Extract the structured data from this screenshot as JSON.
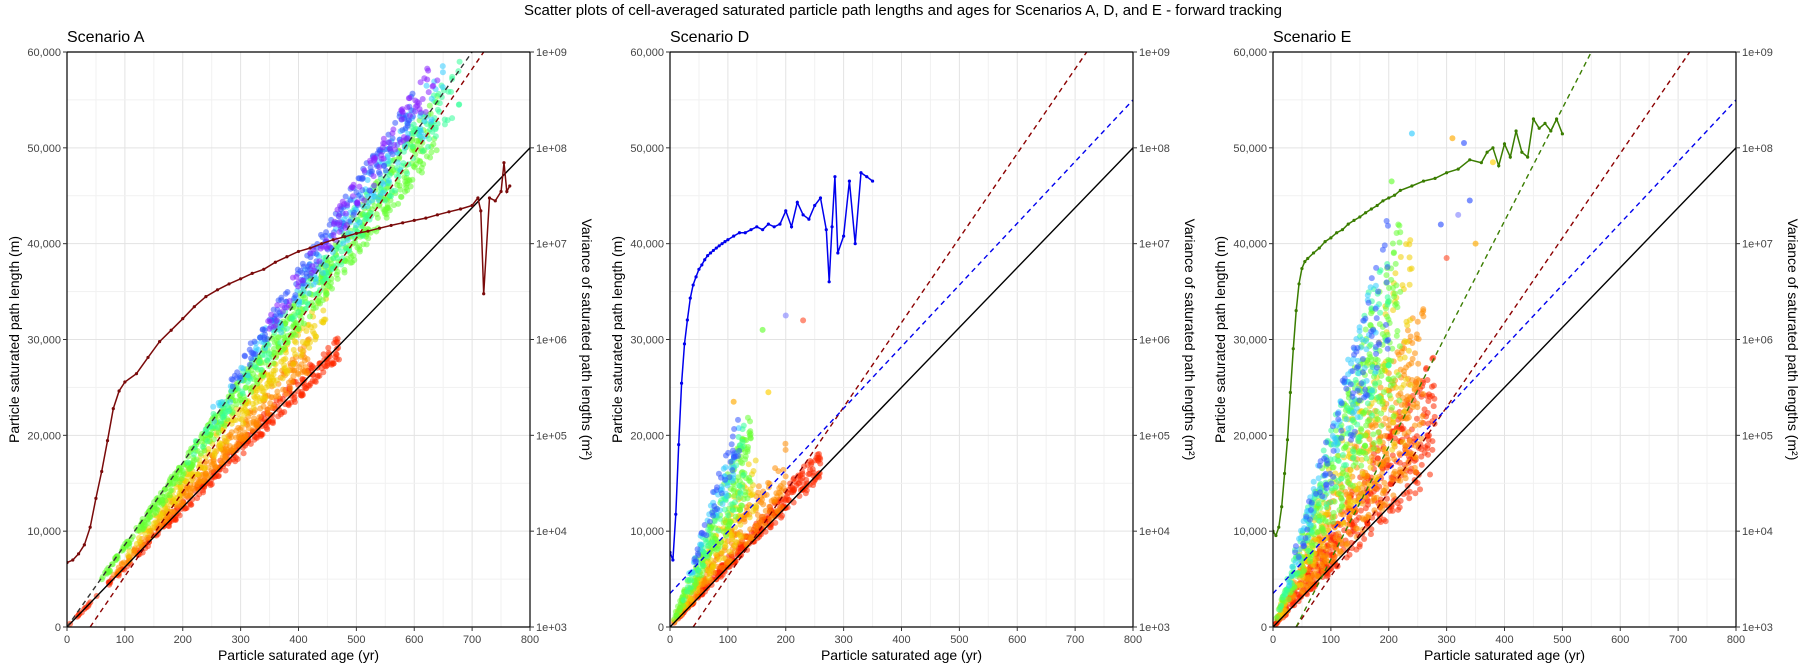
{
  "figure": {
    "title": "Scatter plots of cell-averaged saturated particle path lengths and ages for Scenarios A, D, and E - forward tracking"
  },
  "chart_data": [
    {
      "type": "scatter",
      "title": "Scenario A",
      "xlabel": "Particle saturated age (yr)",
      "ylabel": "Particle saturated path length (m)",
      "y2label": "Variance of saturated path lengths (m²)",
      "xlim": [
        0,
        800
      ],
      "ylim": [
        0,
        60000
      ],
      "y2lim": [
        1000,
        1000000000
      ],
      "y2scale": "log",
      "x_ticks": [
        "0",
        "100",
        "200",
        "300",
        "400",
        "500",
        "600",
        "700",
        "800"
      ],
      "y_ticks": [
        "0",
        "10,000",
        "20,000",
        "30,000",
        "40,000",
        "50,000",
        "60,000"
      ],
      "y2_ticks": [
        "1e+03",
        "1e+04",
        "1e+05",
        "1e+06",
        "1e+07",
        "1e+08",
        "1e+09"
      ],
      "grid": true,
      "reference_lines": [
        {
          "style": "solid",
          "color": "#000000",
          "x": [
            0,
            800
          ],
          "y": [
            0,
            50000
          ]
        },
        {
          "style": "dashed",
          "color": "#8b0000",
          "x": [
            40,
            720
          ],
          "y": [
            0,
            60000
          ]
        },
        {
          "style": "dashed",
          "color": "#333333",
          "x": [
            0,
            700
          ],
          "y": [
            0,
            60000
          ]
        }
      ],
      "scatter_clouds": [
        {
          "color": "#ff2a00",
          "x_range": [
            5,
            470
          ],
          "slope": 62.5,
          "spread": 0.05,
          "n": 320
        },
        {
          "color": "#ff8c00",
          "x_range": [
            80,
            420
          ],
          "slope": 68,
          "spread": 0.06,
          "n": 260
        },
        {
          "color": "#f0d000",
          "x_range": [
            100,
            450
          ],
          "slope": 74,
          "spread": 0.06,
          "n": 220
        },
        {
          "color": "#66ff33",
          "x_range": [
            60,
            640
          ],
          "slope": 82,
          "spread": 0.06,
          "n": 650
        },
        {
          "color": "#33ff99",
          "x_range": [
            200,
            680
          ],
          "slope": 84,
          "spread": 0.05,
          "n": 200
        },
        {
          "color": "#33ccff",
          "x_range": [
            250,
            650
          ],
          "slope": 87,
          "spread": 0.05,
          "n": 140
        },
        {
          "color": "#3355ff",
          "x_range": [
            280,
            600
          ],
          "slope": 90,
          "spread": 0.04,
          "n": 180
        },
        {
          "color": "#8822ff",
          "x_range": [
            340,
            640
          ],
          "slope": 90,
          "spread": 0.04,
          "n": 110
        }
      ],
      "variance_series": {
        "color": "#7a0a0a",
        "x": [
          0,
          10,
          20,
          30,
          40,
          50,
          60,
          70,
          80,
          90,
          100,
          120,
          140,
          160,
          180,
          200,
          220,
          240,
          260,
          280,
          300,
          320,
          340,
          360,
          380,
          400,
          420,
          440,
          460,
          480,
          500,
          520,
          540,
          560,
          580,
          600,
          620,
          640,
          660,
          680,
          700,
          710,
          715,
          720,
          730,
          740,
          750,
          755,
          760,
          765
        ],
        "y": [
          4700,
          5000,
          5800,
          7200,
          11000,
          22000,
          42000,
          88000,
          190000,
          290000,
          360000,
          440000,
          650000,
          950000,
          1250000,
          1650000,
          2200000,
          2800000,
          3300000,
          3800000,
          4300000,
          4900000,
          5400000,
          6400000,
          7300000,
          8300000,
          9000000,
          10000000,
          11000000,
          11800000,
          12800000,
          13500000,
          14500000,
          15500000,
          16500000,
          17500000,
          18500000,
          20000000,
          21500000,
          23000000,
          25000000,
          30000000,
          22000000,
          3000000,
          30000000,
          28000000,
          35000000,
          70000000,
          35000000,
          40000000
        ]
      }
    },
    {
      "type": "scatter",
      "title": "Scenario D",
      "xlabel": "Particle saturated age (yr)",
      "ylabel": "Particle saturated path length (m)",
      "y2label": "Variance of saturated path lengths (m²)",
      "xlim": [
        0,
        800
      ],
      "ylim": [
        0,
        60000
      ],
      "y2lim": [
        1000,
        1000000000
      ],
      "y2scale": "log",
      "x_ticks": [
        "0",
        "100",
        "200",
        "300",
        "400",
        "500",
        "600",
        "700",
        "800"
      ],
      "y_ticks": [
        "0",
        "10,000",
        "20,000",
        "30,000",
        "40,000",
        "50,000",
        "60,000"
      ],
      "y2_ticks": [
        "1e+03",
        "1e+04",
        "1e+05",
        "1e+06",
        "1e+07",
        "1e+08",
        "1e+09"
      ],
      "grid": true,
      "reference_lines": [
        {
          "style": "solid",
          "color": "#000000",
          "x": [
            0,
            800
          ],
          "y": [
            0,
            50000
          ]
        },
        {
          "style": "dashed",
          "color": "#8b0000",
          "x": [
            40,
            720
          ],
          "y": [
            0,
            60000
          ]
        },
        {
          "style": "dashed",
          "color": "#0000ee",
          "x": [
            0,
            800
          ],
          "y": [
            3500,
            55000
          ]
        }
      ],
      "scatter_clouds": [
        {
          "color": "#ff2a00",
          "x_range": [
            3,
            260
          ],
          "slope": 66,
          "spread": 0.1,
          "n": 280
        },
        {
          "color": "#ff8c00",
          "x_range": [
            5,
            200
          ],
          "slope": 80,
          "spread": 0.2,
          "n": 170
        },
        {
          "color": "#f0d000",
          "x_range": [
            5,
            150
          ],
          "slope": 100,
          "spread": 0.25,
          "n": 120
        },
        {
          "color": "#66ff33",
          "x_range": [
            5,
            140
          ],
          "slope": 130,
          "spread": 0.25,
          "n": 180
        },
        {
          "color": "#33ff99",
          "x_range": [
            10,
            130
          ],
          "slope": 140,
          "spread": 0.2,
          "n": 60
        },
        {
          "color": "#33ccff",
          "x_range": [
            30,
            120
          ],
          "slope": 160,
          "spread": 0.15,
          "n": 40
        },
        {
          "color": "#3355ff",
          "x_range": [
            40,
            120
          ],
          "slope": 170,
          "spread": 0.12,
          "n": 40
        }
      ],
      "scatter_points": [
        {
          "x": 200,
          "y": 32500,
          "color": "#8888ff"
        },
        {
          "x": 230,
          "y": 32000,
          "color": "#ff5533"
        },
        {
          "x": 160,
          "y": 31000,
          "color": "#66ff33"
        },
        {
          "x": 170,
          "y": 24500,
          "color": "#ffd000"
        },
        {
          "x": 110,
          "y": 23500,
          "color": "#ffaa00"
        }
      ],
      "variance_series": {
        "color": "#0000ee",
        "x": [
          0,
          5,
          10,
          15,
          20,
          25,
          30,
          35,
          40,
          45,
          50,
          55,
          60,
          65,
          70,
          75,
          80,
          85,
          90,
          95,
          100,
          110,
          120,
          130,
          140,
          150,
          160,
          170,
          180,
          190,
          200,
          210,
          220,
          230,
          240,
          250,
          260,
          270,
          275,
          280,
          285,
          290,
          300,
          310,
          320,
          330,
          340,
          350
        ],
        "y": [
          6000,
          5000,
          15000,
          80000,
          350000,
          900000,
          1600000,
          2700000,
          3700000,
          4500000,
          5400000,
          6000000,
          6800000,
          7500000,
          8000000,
          8500000,
          9000000,
          9500000,
          10000000,
          10500000,
          11000000,
          12000000,
          13000000,
          13000000,
          14000000,
          15000000,
          14000000,
          16000000,
          15000000,
          16000000,
          22000000,
          15000000,
          27000000,
          20000000,
          18000000,
          25000000,
          30000000,
          14000000,
          4000000,
          15000000,
          50000000,
          8000000,
          12000000,
          45000000,
          10000000,
          55000000,
          50000000,
          45000000
        ]
      }
    },
    {
      "type": "scatter",
      "title": "Scenario E",
      "xlabel": "Particle saturated age (yr)",
      "ylabel": "Particle saturated path length (m)",
      "y2label": "Variance of saturated path lengths (m²)",
      "xlim": [
        0,
        800
      ],
      "ylim": [
        0,
        60000
      ],
      "y2lim": [
        1000,
        1000000000
      ],
      "y2scale": "log",
      "x_ticks": [
        "0",
        "100",
        "200",
        "300",
        "400",
        "500",
        "600",
        "700",
        "800"
      ],
      "y_ticks": [
        "0",
        "10,000",
        "20,000",
        "30,000",
        "40,000",
        "50,000",
        "60,000"
      ],
      "y2_ticks": [
        "1e+03",
        "1e+04",
        "1e+05",
        "1e+06",
        "1e+07",
        "1e+08",
        "1e+09"
      ],
      "grid": true,
      "reference_lines": [
        {
          "style": "solid",
          "color": "#000000",
          "x": [
            0,
            800
          ],
          "y": [
            0,
            50000
          ]
        },
        {
          "style": "dashed",
          "color": "#8b0000",
          "x": [
            40,
            720
          ],
          "y": [
            0,
            60000
          ]
        },
        {
          "style": "dashed",
          "color": "#0000ee",
          "x": [
            0,
            800
          ],
          "y": [
            3500,
            55000
          ]
        },
        {
          "style": "dashed",
          "color": "#3a7d00",
          "x": [
            40,
            550
          ],
          "y": [
            0,
            60000
          ]
        }
      ],
      "scatter_clouds": [
        {
          "color": "#ff2a00",
          "x_range": [
            3,
            280
          ],
          "slope": 80,
          "spread": 0.3,
          "n": 420
        },
        {
          "color": "#ff8c00",
          "x_range": [
            5,
            260
          ],
          "slope": 100,
          "spread": 0.35,
          "n": 360
        },
        {
          "color": "#f0d000",
          "x_range": [
            5,
            240
          ],
          "slope": 130,
          "spread": 0.35,
          "n": 200
        },
        {
          "color": "#66ff33",
          "x_range": [
            5,
            220
          ],
          "slope": 150,
          "spread": 0.3,
          "n": 300
        },
        {
          "color": "#33ff99",
          "x_range": [
            10,
            200
          ],
          "slope": 170,
          "spread": 0.25,
          "n": 130
        },
        {
          "color": "#33ccff",
          "x_range": [
            20,
            180
          ],
          "slope": 180,
          "spread": 0.2,
          "n": 90
        },
        {
          "color": "#3355ff",
          "x_range": [
            30,
            200
          ],
          "slope": 180,
          "spread": 0.2,
          "n": 90
        }
      ],
      "scatter_points": [
        {
          "x": 240,
          "y": 51500,
          "color": "#33ccff"
        },
        {
          "x": 310,
          "y": 51000,
          "color": "#ffaa00"
        },
        {
          "x": 330,
          "y": 50500,
          "color": "#3355ff"
        },
        {
          "x": 380,
          "y": 48500,
          "color": "#ffd000"
        },
        {
          "x": 205,
          "y": 46500,
          "color": "#66ff33"
        },
        {
          "x": 340,
          "y": 44500,
          "color": "#3355ff"
        },
        {
          "x": 320,
          "y": 43000,
          "color": "#8888ff"
        },
        {
          "x": 290,
          "y": 42000,
          "color": "#3355ff"
        },
        {
          "x": 350,
          "y": 40000,
          "color": "#ffaa00"
        },
        {
          "x": 300,
          "y": 38500,
          "color": "#ff5533"
        }
      ],
      "variance_series": {
        "color": "#3a7d00",
        "x": [
          0,
          5,
          10,
          15,
          20,
          25,
          30,
          35,
          40,
          45,
          50,
          55,
          60,
          70,
          80,
          90,
          100,
          110,
          120,
          130,
          140,
          150,
          160,
          170,
          180,
          190,
          200,
          210,
          220,
          240,
          260,
          280,
          300,
          320,
          340,
          360,
          370,
          380,
          390,
          400,
          410,
          420,
          430,
          440,
          450,
          460,
          470,
          480,
          490,
          500
        ],
        "y": [
          10000,
          9000,
          11000,
          18000,
          40000,
          90000,
          280000,
          800000,
          2000000,
          3800000,
          5500000,
          6500000,
          7000000,
          8000000,
          9000000,
          10500000,
          11500000,
          13000000,
          14000000,
          16000000,
          17500000,
          19000000,
          21000000,
          23000000,
          25000000,
          28000000,
          30000000,
          32000000,
          36000000,
          40000000,
          45000000,
          48000000,
          55000000,
          60000000,
          75000000,
          70000000,
          90000000,
          100000000,
          65000000,
          110000000,
          80000000,
          150000000,
          90000000,
          80000000,
          200000000,
          160000000,
          180000000,
          150000000,
          200000000,
          140000000
        ]
      }
    }
  ]
}
